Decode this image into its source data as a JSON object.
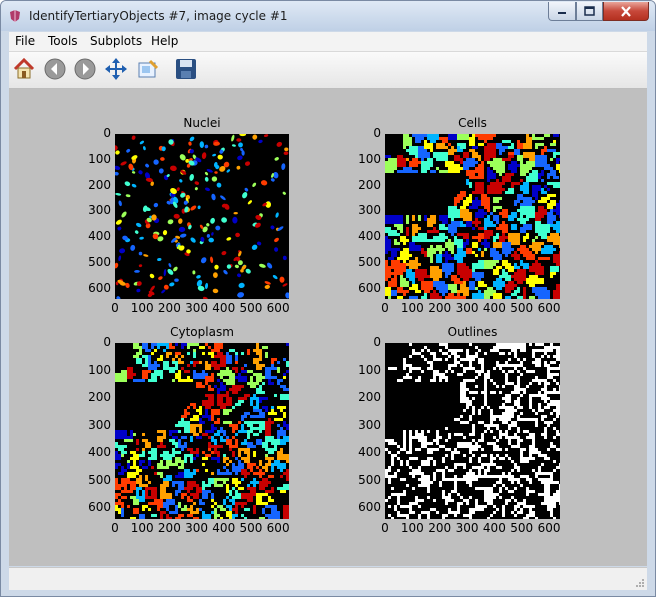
{
  "window": {
    "title": "IdentifyTertiaryObjects #7, image cycle #1"
  },
  "menu": {
    "file": "File",
    "tools": "Tools",
    "subplots": "Subplots",
    "help": "Help"
  },
  "toolbar": [
    "home-icon",
    "back-icon",
    "forward-icon",
    "pan-icon",
    "zoom-icon",
    "save-icon"
  ],
  "panels": [
    {
      "title": "Nuclei",
      "kind": "nuclei"
    },
    {
      "title": "Cells",
      "kind": "cells"
    },
    {
      "title": "Cytoplasm",
      "kind": "cytoplasm"
    },
    {
      "title": "Outlines",
      "kind": "outlines"
    }
  ],
  "ticks": {
    "y": [
      "0",
      "100",
      "200",
      "300",
      "400",
      "500",
      "600"
    ],
    "x": [
      "0",
      "100",
      "200",
      "300",
      "400",
      "500",
      "600"
    ]
  },
  "colors": {
    "label_palette": [
      "#0000c8",
      "#1565ff",
      "#00b4ff",
      "#40ffd0",
      "#9cff5a",
      "#ffff00",
      "#ffa000",
      "#ff3c00",
      "#c80000"
    ],
    "figure_background": "#bfbfbf"
  }
}
